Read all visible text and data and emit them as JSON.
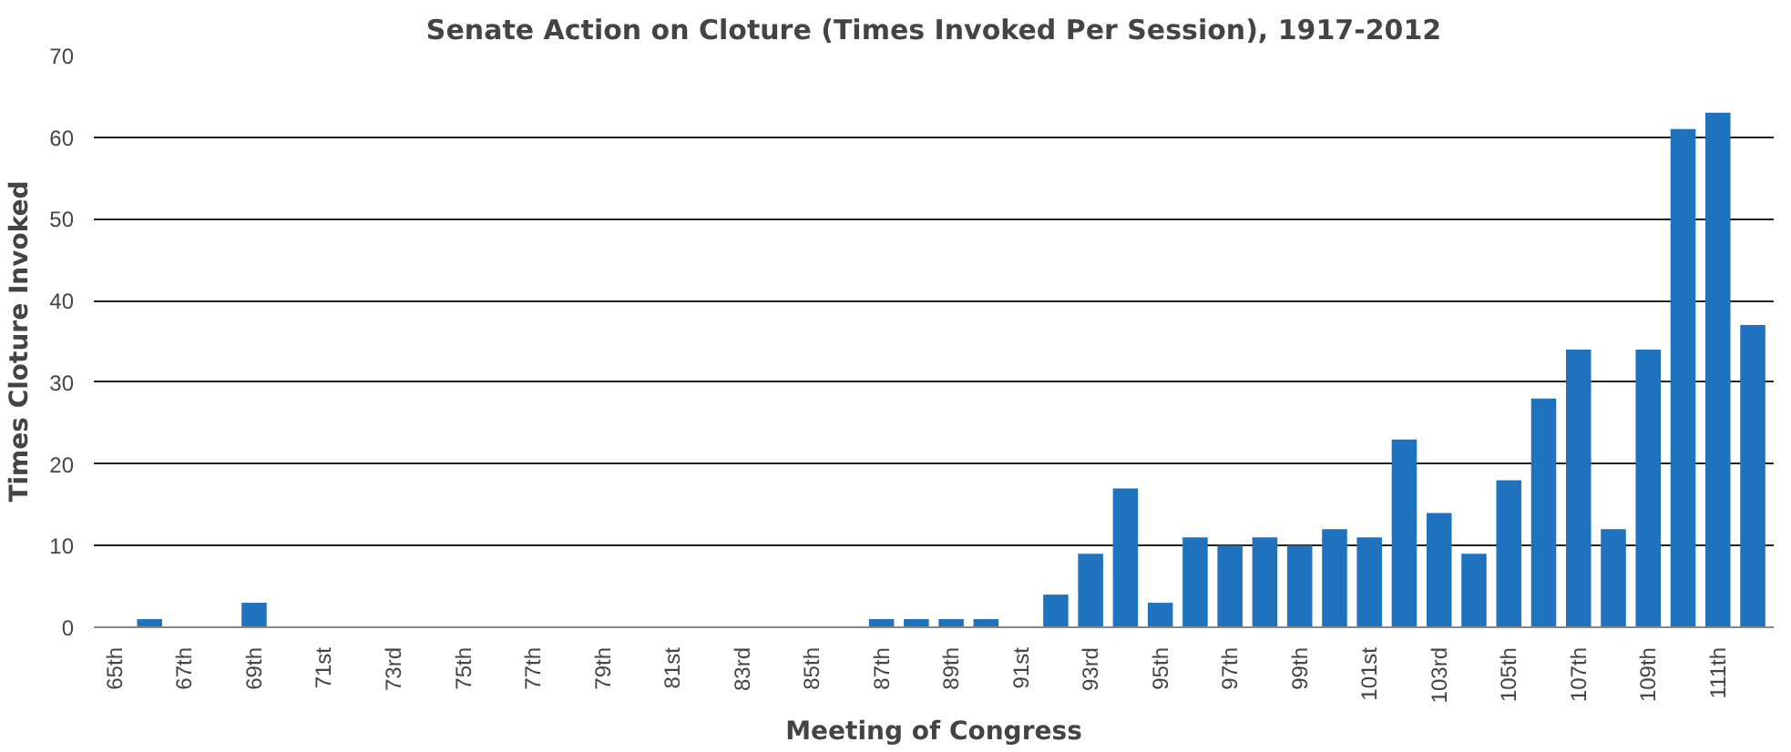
{
  "chart_data": {
    "type": "bar",
    "title": "Senate Action on Cloture (Times Invoked Per Session), 1917-2012",
    "xlabel": "Meeting of Congress",
    "ylabel": "Times Cloture Invoked",
    "categories": [
      "65th",
      null,
      "67th",
      null,
      "69th",
      null,
      "71st",
      null,
      "73rd",
      null,
      "75th",
      null,
      "77th",
      null,
      "79th",
      null,
      "81st",
      null,
      "83rd",
      null,
      "85th",
      null,
      "87th",
      null,
      "89th",
      null,
      "91st",
      null,
      "93rd",
      null,
      "95th",
      null,
      "97th",
      null,
      "99th",
      null,
      "101st",
      null,
      "103rd",
      null,
      "105th",
      null,
      "107th",
      null,
      "109th",
      null,
      "111th",
      null
    ],
    "values": [
      0,
      1,
      0,
      0,
      3,
      0,
      0,
      0,
      0,
      0,
      0,
      0,
      0,
      0,
      0,
      0,
      0,
      0,
      0,
      0,
      0,
      0,
      1,
      1,
      1,
      1,
      0,
      4,
      9,
      17,
      3,
      11,
      10,
      11,
      10,
      12,
      11,
      23,
      14,
      9,
      18,
      28,
      34,
      12,
      34,
      61,
      63,
      37
    ],
    "color": "#1f73be",
    "ylim": [
      0,
      70
    ],
    "yticks": [
      0,
      10,
      20,
      30,
      40,
      50,
      60,
      70
    ],
    "grid": "y"
  }
}
